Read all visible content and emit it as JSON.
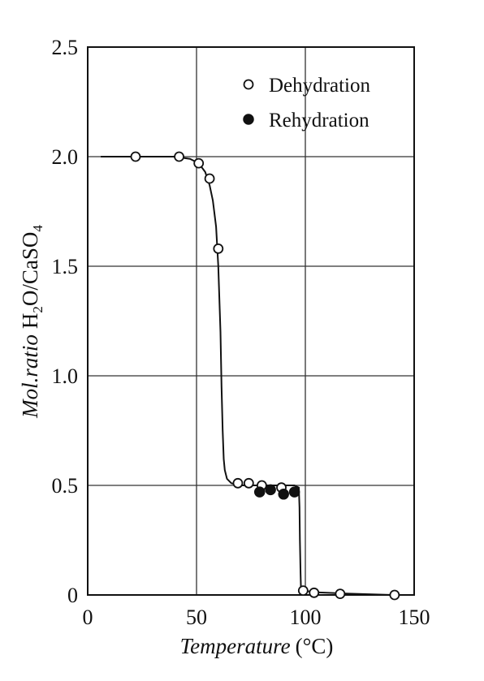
{
  "chart_data": {
    "type": "scatter",
    "xlabel": "Temperature",
    "xlabel_unit": "(°C)",
    "ylabel_italic": "Mol.ratio",
    "ylabel_formula": {
      "part1": "H",
      "sub1": "2",
      "part2": "O/CaSO",
      "sub2": "4"
    },
    "xlim": [
      0,
      150
    ],
    "ylim": [
      0,
      2.5
    ],
    "x_ticks": [
      0,
      50,
      100,
      150
    ],
    "y_ticks": [
      0,
      0.5,
      1.0,
      1.5,
      2.0,
      2.5
    ],
    "x_tick_labels": [
      "0",
      "50",
      "100",
      "150"
    ],
    "y_tick_labels": [
      "0",
      "0.5",
      "1.0",
      "1.5",
      "2.0",
      "2.5"
    ],
    "grid": true,
    "legend_position": "top-right",
    "series": [
      {
        "name": "Dehydration",
        "marker": "open-circle",
        "x": [
          22,
          42,
          51,
          56,
          60,
          69,
          74,
          80,
          89,
          99,
          104,
          116,
          141
        ],
        "y": [
          2.0,
          2.0,
          1.97,
          1.9,
          1.58,
          0.51,
          0.51,
          0.5,
          0.49,
          0.02,
          0.01,
          0.005,
          0.0
        ]
      },
      {
        "name": "Rehydration",
        "marker": "filled-circle",
        "x": [
          79,
          84,
          90,
          95
        ],
        "y": [
          0.47,
          0.48,
          0.46,
          0.47
        ]
      }
    ],
    "curve": {
      "x": [
        6,
        20,
        40,
        47,
        51,
        54,
        56,
        57.5,
        59,
        60,
        61,
        61.5,
        62,
        62.5,
        63,
        64,
        66,
        70,
        80,
        90,
        95,
        97,
        97.3,
        97.5,
        97.8,
        98,
        99,
        105,
        120,
        140,
        148
      ],
      "y": [
        2.0,
        2.0,
        2.0,
        1.99,
        1.97,
        1.93,
        1.87,
        1.8,
        1.68,
        1.5,
        1.2,
        0.95,
        0.75,
        0.62,
        0.57,
        0.53,
        0.51,
        0.5,
        0.5,
        0.5,
        0.5,
        0.49,
        0.4,
        0.25,
        0.1,
        0.03,
        0.02,
        0.012,
        0.006,
        0.0,
        0.0
      ]
    }
  }
}
